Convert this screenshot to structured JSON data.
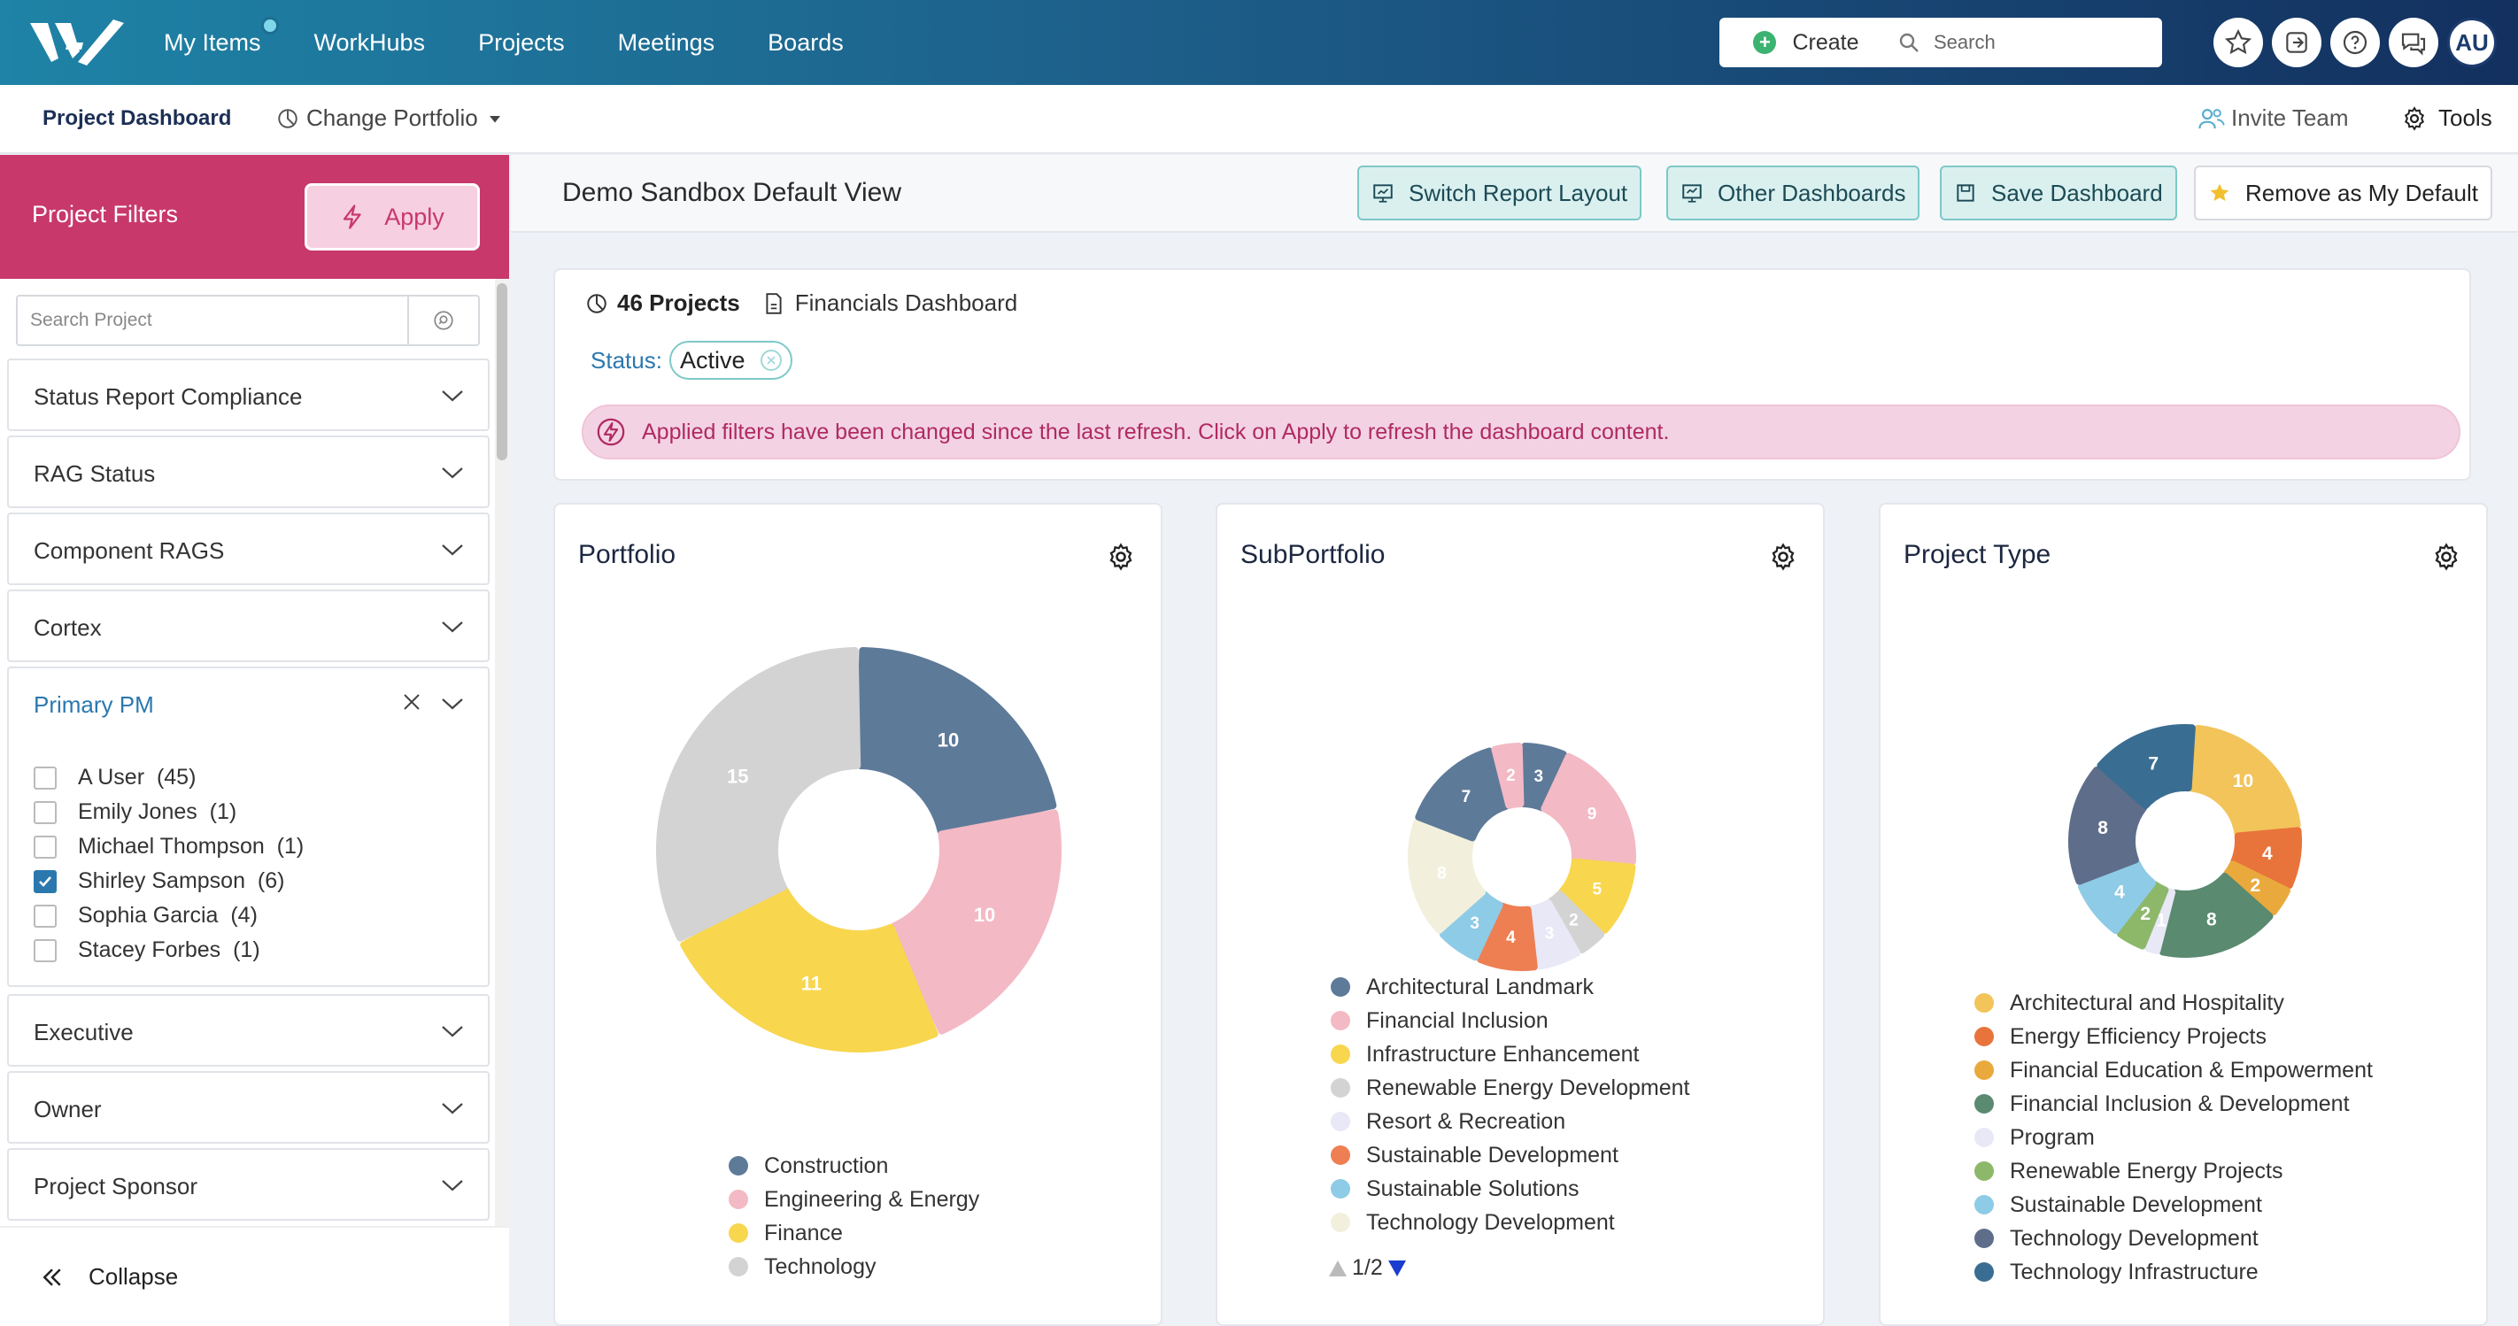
{
  "nav": {
    "items": [
      "My Items",
      "WorkHubs",
      "Projects",
      "Meetings",
      "Boards"
    ],
    "create_label": "Create",
    "search_placeholder": "Search",
    "avatar_initials": "AU"
  },
  "subnav": {
    "project_dashboard": "Project Dashboard",
    "change_portfolio": "Change Portfolio",
    "invite_team": "Invite Team",
    "tools": "Tools"
  },
  "sidebar": {
    "title": "Project Filters",
    "apply_label": "Apply",
    "search_placeholder": "Search Project",
    "filters": [
      "Status Report Compliance",
      "RAG Status",
      "Component RAGS",
      "Cortex",
      "Primary PM",
      "Executive",
      "Owner",
      "Project Sponsor"
    ],
    "primary_pm": [
      {
        "label": "A User",
        "count": "(45)",
        "checked": false
      },
      {
        "label": "Emily Jones",
        "count": "(1)",
        "checked": false
      },
      {
        "label": "Michael Thompson",
        "count": "(1)",
        "checked": false
      },
      {
        "label": "Shirley Sampson",
        "count": "(6)",
        "checked": true
      },
      {
        "label": "Sophia Garcia",
        "count": "(4)",
        "checked": false
      },
      {
        "label": "Stacey Forbes",
        "count": "(1)",
        "checked": false
      }
    ],
    "collapse_label": "Collapse"
  },
  "header": {
    "view_title": "Demo Sandbox Default View",
    "buttons": [
      "Switch Report Layout",
      "Other Dashboards",
      "Save Dashboard",
      "Remove as My Default"
    ]
  },
  "filters_card": {
    "projects_count": "46 Projects",
    "financials": "Financials Dashboard",
    "status_label": "Status:",
    "status_value": "Active",
    "alert": "Applied filters have been changed since the last refresh. Click on Apply to refresh the dashboard content."
  },
  "colors": {
    "brand_pink": "#c8386b",
    "accent_blue": "#2b78ae",
    "teal_button": "#d9f0ef"
  },
  "chart_data": [
    {
      "type": "pie",
      "title": "Portfolio",
      "categories": [
        "Construction",
        "Engineering & Energy",
        "Finance",
        "Technology"
      ],
      "values": [
        10,
        10,
        11,
        15
      ],
      "colors": [
        "#5e7a99",
        "#f3b9c4",
        "#f8d64e",
        "#d3d3d3"
      ],
      "legend": "bottom"
    },
    {
      "type": "pie",
      "title": "SubPortfolio",
      "categories": [
        "Architectural Landmark",
        "Financial Inclusion",
        "Infrastructure Enhancement",
        "Renewable Energy Development",
        "Resort & Recreation",
        "Sustainable Development",
        "Sustainable Solutions",
        "Technology Development"
      ],
      "slices": [
        {
          "value": 3,
          "color": "#5e7a99"
        },
        {
          "value": 9,
          "color": "#f3b9c4"
        },
        {
          "value": 5,
          "color": "#f8d64e"
        },
        {
          "value": 2,
          "color": "#d3d3d3"
        },
        {
          "value": 3,
          "color": "#e8e8f7"
        },
        {
          "value": 4,
          "color": "#ee7f53"
        },
        {
          "value": 3,
          "color": "#8ecbe6"
        },
        {
          "value": 8,
          "color": "#f2f0dc"
        },
        {
          "value": 7,
          "color": "#5e7a99"
        },
        {
          "value": 2,
          "color": "#f3b9c4"
        }
      ],
      "legend_colors": [
        "#5e7a99",
        "#f3b9c4",
        "#f8d64e",
        "#d3d3d3",
        "#e8e8f7",
        "#ee7f53",
        "#8ecbe6",
        "#f2f0dc"
      ],
      "legend": "bottom",
      "pager": "1/2"
    },
    {
      "type": "pie",
      "title": "Project Type",
      "categories": [
        "Architectural and Hospitality",
        "Energy Efficiency Projects",
        "Financial Education & Empowerment",
        "Financial Inclusion & Development",
        "Program",
        "Renewable Energy Projects",
        "Sustainable Development",
        "Technology Development",
        "Technology Infrastructure"
      ],
      "slices": [
        {
          "value": 10,
          "color": "#f2c45a"
        },
        {
          "value": 4,
          "color": "#e8743b"
        },
        {
          "value": 2,
          "color": "#eaa93c"
        },
        {
          "value": 8,
          "color": "#5a8a70"
        },
        {
          "value": 1,
          "color": "#e8e8f7"
        },
        {
          "value": 2,
          "color": "#8db86a"
        },
        {
          "value": 4,
          "color": "#8ecbe6"
        },
        {
          "value": 8,
          "color": "#5e6e8a"
        },
        {
          "value": 7,
          "color": "#3a6d92"
        }
      ],
      "legend_colors": [
        "#f2c45a",
        "#e8743b",
        "#eaa93c",
        "#5a8a70",
        "#e8e8f7",
        "#8db86a",
        "#8ecbe6",
        "#5e6e8a",
        "#3a6d92"
      ],
      "legend": "bottom"
    }
  ]
}
